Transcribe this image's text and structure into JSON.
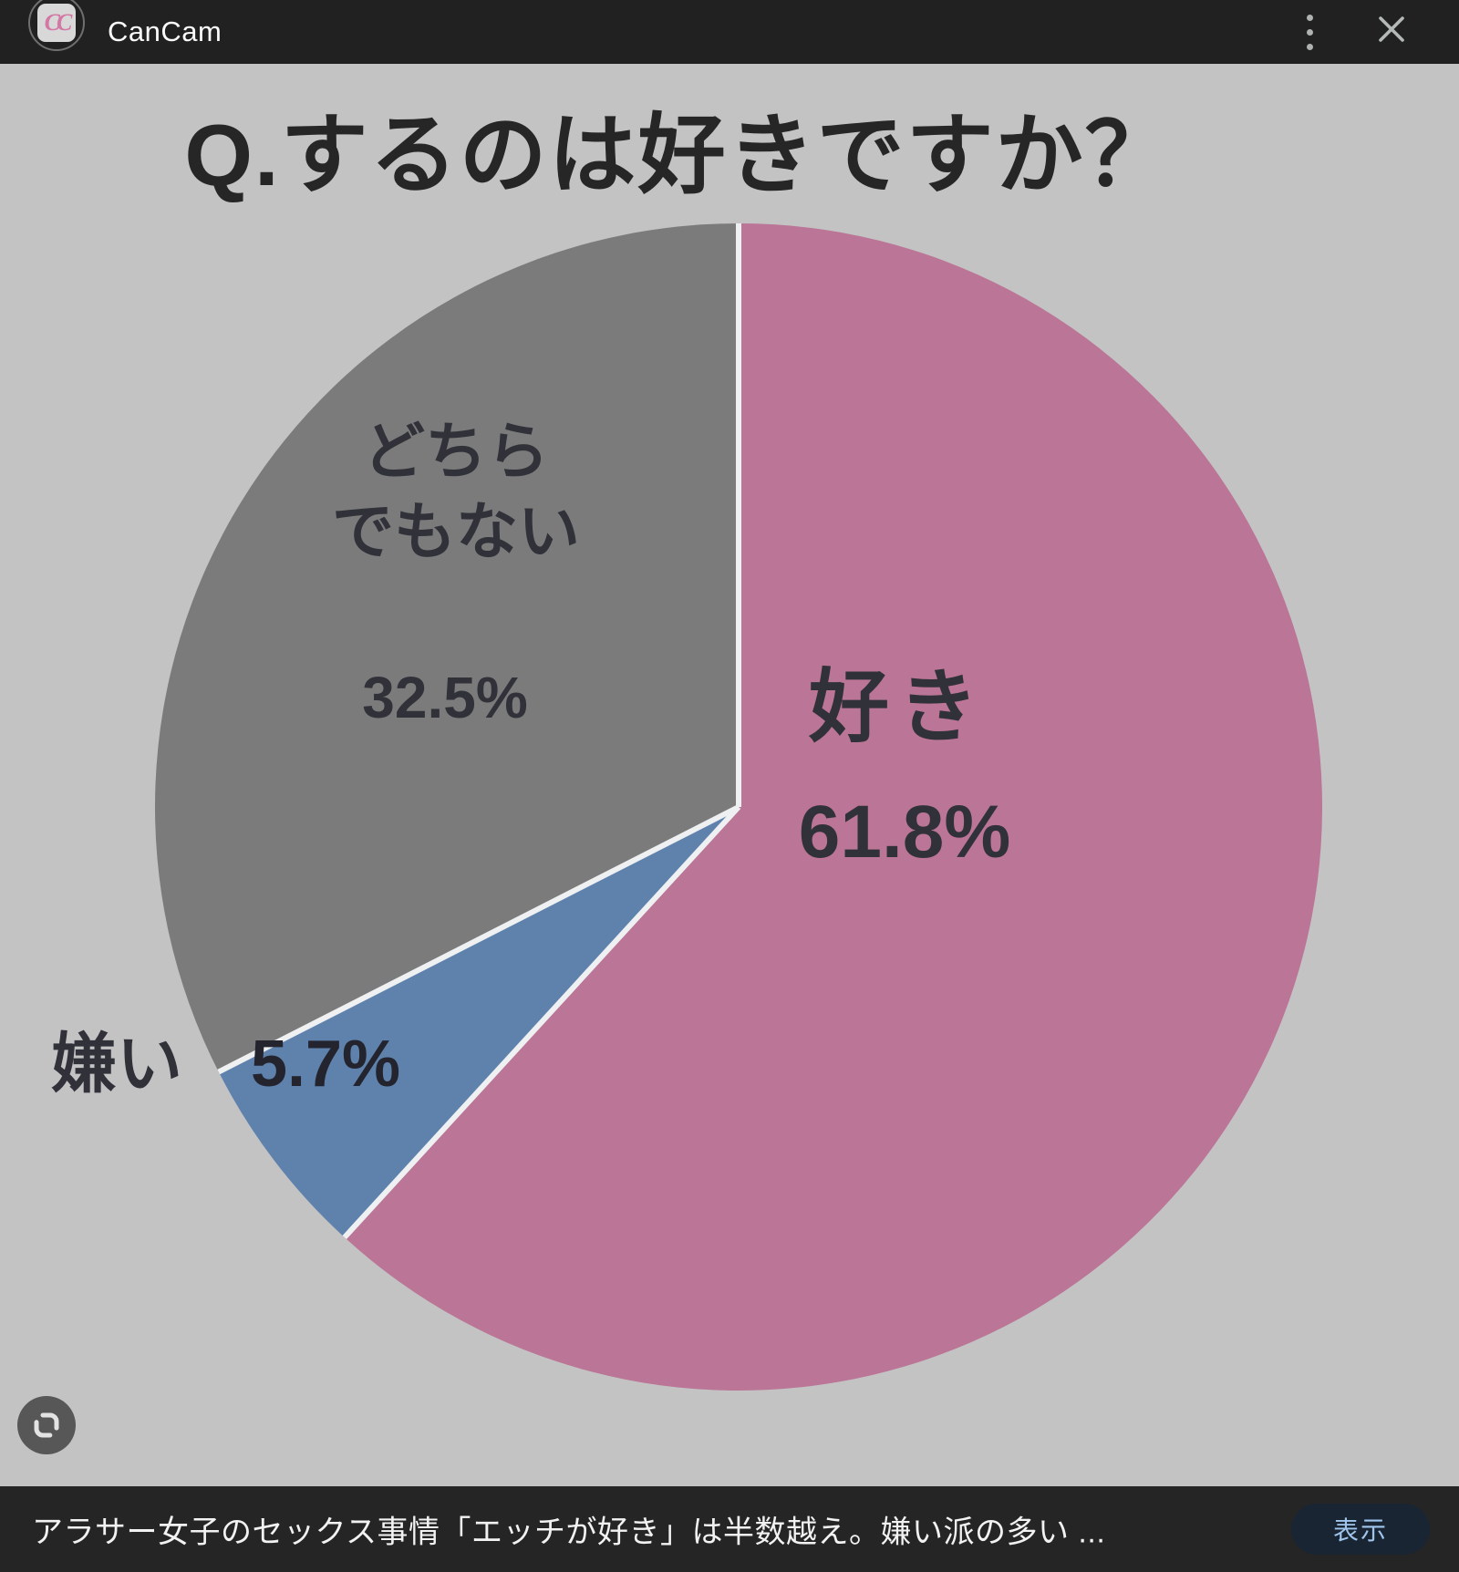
{
  "topbar": {
    "app_name": "CanCam",
    "logo_text": "CC",
    "brand_pink": "#d377a4"
  },
  "chart_data": {
    "type": "pie",
    "title": "Q.するのは好きですか？",
    "background": "#c3c3c4",
    "divider_color": "#eef0f2",
    "start_angle_deg": -90,
    "direction": "clockwise",
    "legend": "none",
    "slices": [
      {
        "label": "好き",
        "value": 61.8,
        "display": "61.8%",
        "color": "#bb7596"
      },
      {
        "label": "嫌い",
        "value": 5.7,
        "display": "5.7%",
        "color": "#5f82ad"
      },
      {
        "label": "どちらでもない",
        "label_lines": [
          "どちら",
          "でもない"
        ],
        "value": 32.5,
        "display": "32.5%",
        "color": "#7b7b7b"
      }
    ]
  },
  "footer": {
    "caption": "アラサー女子のセックス事情「エッチが好き」は半数越え。嫌い派の多い ...",
    "show_button": "表示"
  }
}
